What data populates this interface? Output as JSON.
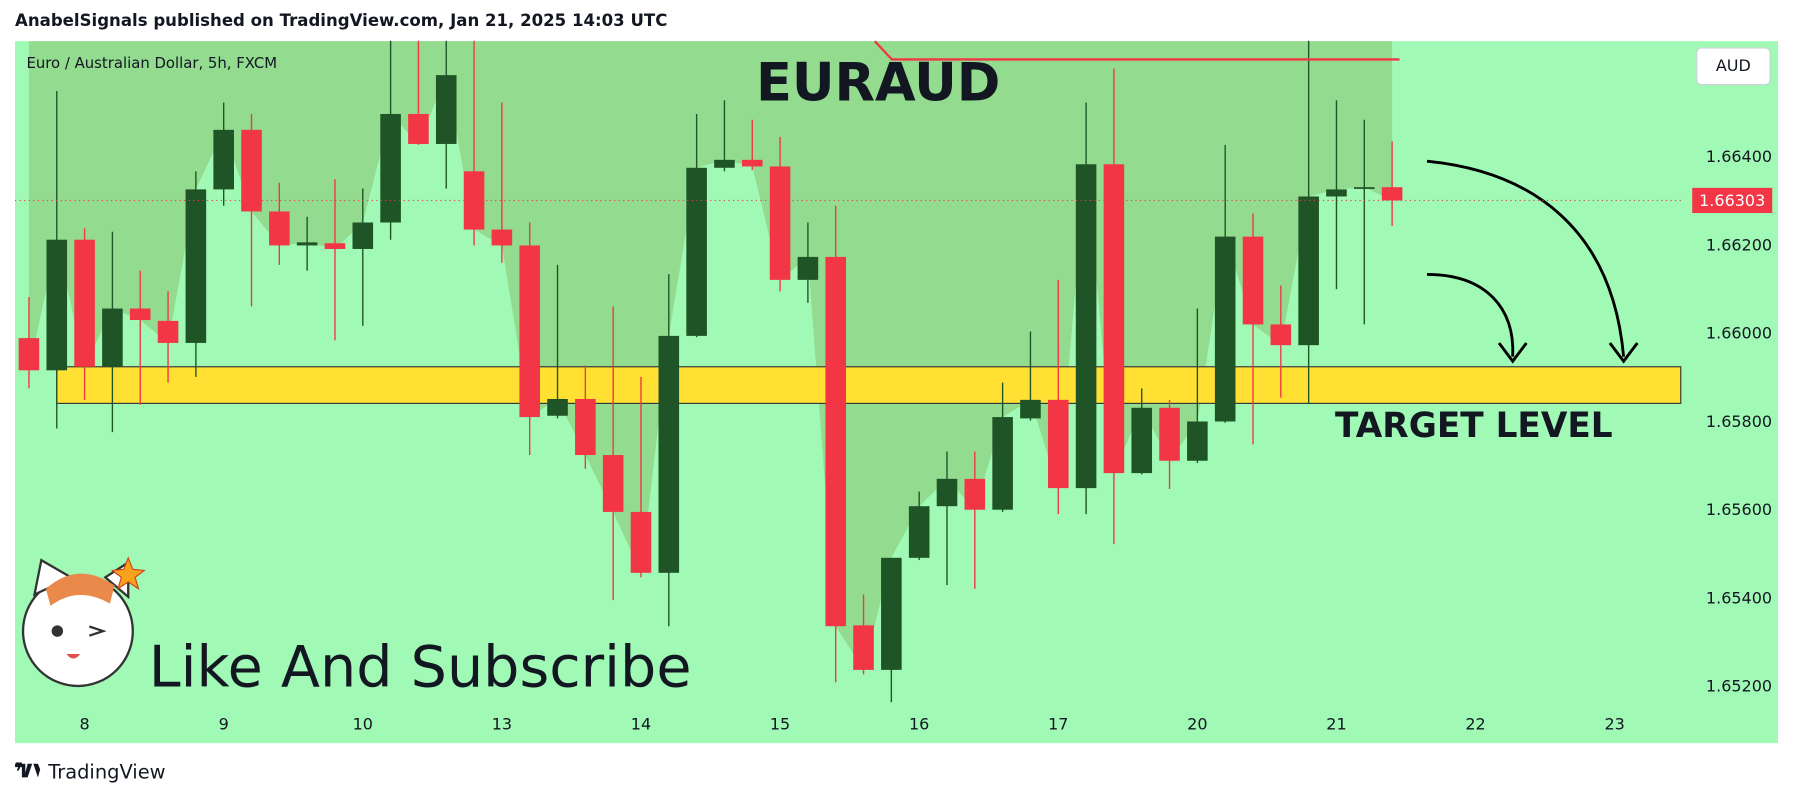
{
  "header": "AnabelSignals published on TradingView.com, Jan 21, 2025 14:03 UTC",
  "footer_logo": "TradingView",
  "chart_data": {
    "type": "candlestick",
    "title": "EURAUD",
    "symbol": "Euro / Australian Dollar, 5h, FXCM",
    "currency": "AUD",
    "annotation": "Like And Subscribe",
    "target_zone": {
      "label": "TARGET LEVEL",
      "top": 1.65926,
      "bottom": 1.65843,
      "color": "#ffe033"
    },
    "up_color": "#1f5426",
    "down_color": "#f23645",
    "area_color": "#6f8f2f",
    "categories": [
      null,
      null,
      "8",
      null,
      null,
      null,
      null,
      "9",
      null,
      null,
      null,
      null,
      "10",
      null,
      null,
      null,
      null,
      "13",
      null,
      null,
      null,
      null,
      "14",
      null,
      null,
      null,
      null,
      "15",
      null,
      null,
      null,
      null,
      "16",
      null,
      null,
      null,
      null,
      "17",
      null,
      null,
      null,
      null,
      "20",
      null,
      null,
      null,
      null,
      "21",
      null,
      null,
      null,
      null,
      "22",
      null,
      null,
      null,
      null,
      "23",
      null,
      null
    ],
    "open": [
      1.65991,
      1.65918,
      1.66214,
      1.65926,
      1.66058,
      1.6603,
      1.6598,
      1.66328,
      1.66463,
      1.66278,
      1.66201,
      1.66206,
      1.66193,
      1.66253,
      1.66499,
      1.66431,
      1.66369,
      1.66237,
      1.66201,
      1.65815,
      1.65853,
      1.65726,
      1.65597,
      1.65459,
      1.65996,
      1.66377,
      1.66395,
      1.6638,
      1.66123,
      1.66175,
      1.6534,
      1.65239,
      1.65493,
      1.6561,
      1.65672,
      1.65602,
      1.65809,
      1.65851,
      1.65651,
      1.66385,
      1.65685,
      1.65833,
      1.65713,
      1.65802,
      1.66221,
      1.66022,
      1.65975,
      1.66312,
      1.6633,
      1.66333,
      null,
      null,
      null,
      null,
      null,
      null,
      null,
      null,
      null,
      null
    ],
    "high": [
      1.66084,
      1.66551,
      1.6624,
      1.66232,
      1.66144,
      1.66097,
      1.66369,
      1.66525,
      1.66499,
      1.66343,
      1.66266,
      1.66351,
      1.6633,
      1.66665,
      1.66665,
      1.66665,
      1.66665,
      1.66525,
      1.66253,
      1.66157,
      1.65929,
      1.66063,
      1.65903,
      1.66136,
      1.66499,
      1.6653,
      1.66486,
      1.66447,
      1.66253,
      1.66291,
      1.6541,
      1.65493,
      1.65643,
      1.65734,
      1.65734,
      1.6589,
      1.66006,
      1.66123,
      1.66525,
      1.66602,
      1.65877,
      1.65851,
      1.66058,
      1.66429,
      1.66273,
      1.6611,
      1.66665,
      1.6653,
      1.66486,
      1.66437,
      null,
      null,
      null,
      null,
      null,
      null,
      null,
      null,
      null,
      null
    ],
    "low": [
      1.65877,
      1.65786,
      1.65851,
      1.65778,
      1.6584,
      1.6589,
      1.65903,
      1.66291,
      1.66063,
      1.66157,
      1.66144,
      1.65986,
      1.66019,
      1.66214,
      1.66429,
      1.6633,
      1.66201,
      1.66162,
      1.65726,
      1.65809,
      1.65695,
      1.65397,
      1.65449,
      1.65338,
      1.65993,
      1.66369,
      1.66372,
      1.66097,
      1.66071,
      1.65211,
      1.65229,
      1.65166,
      1.65488,
      1.65431,
      1.65423,
      1.65597,
      1.65804,
      1.65592,
      1.65592,
      1.65524,
      1.65682,
      1.65649,
      1.65708,
      1.65799,
      1.6575,
      1.65856,
      1.65843,
      1.66102,
      1.66022,
      1.66245,
      null,
      null,
      null,
      null,
      null,
      null,
      null,
      null,
      null,
      null
    ],
    "close": [
      1.65918,
      1.66214,
      1.65926,
      1.66058,
      1.66032,
      1.6598,
      1.66328,
      1.66463,
      1.66278,
      1.66201,
      1.66208,
      1.66193,
      1.66253,
      1.66499,
      1.66431,
      1.66587,
      1.66237,
      1.66201,
      1.65812,
      1.65853,
      1.65726,
      1.65597,
      1.65459,
      1.65996,
      1.66377,
      1.66395,
      1.6638,
      1.66123,
      1.66175,
      1.65338,
      1.65239,
      1.65493,
      1.6561,
      1.65672,
      1.65602,
      1.65812,
      1.65851,
      1.65651,
      1.66385,
      1.65685,
      1.65833,
      1.65713,
      1.65802,
      1.66221,
      1.66022,
      1.65975,
      1.66312,
      1.66328,
      1.66333,
      1.66303,
      null,
      null,
      null,
      null,
      null,
      null,
      null,
      null,
      null,
      null
    ],
    "ylim": [
      1.65073,
      1.66664
    ],
    "yticks": [
      {
        "value": 1.664,
        "label": "1.66400"
      },
      {
        "value": 1.662,
        "label": "1.66200"
      },
      {
        "value": 1.66,
        "label": "1.66000"
      },
      {
        "value": 1.658,
        "label": "1.65800"
      },
      {
        "value": 1.656,
        "label": "1.65600"
      },
      {
        "value": 1.654,
        "label": "1.65400"
      },
      {
        "value": 1.652,
        "label": "1.65200"
      }
    ]
  }
}
